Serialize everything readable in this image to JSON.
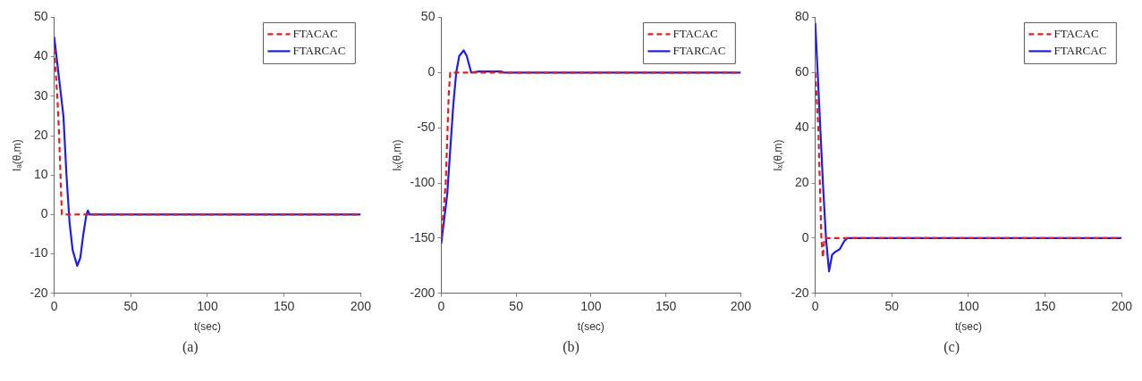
{
  "chart_data": [
    {
      "type": "line",
      "xlabel": "t(sec)",
      "ylabel": "Iₐ(θ,m)",
      "annotations": [
        "(a)"
      ],
      "xlim": [
        0,
        200
      ],
      "ylim": [
        -20,
        50
      ],
      "xticks": [
        0,
        50,
        100,
        150,
        200
      ],
      "yticks": [
        -20,
        -10,
        0,
        10,
        20,
        30,
        40,
        50
      ],
      "grid": false,
      "legend": "top right",
      "marker": "none",
      "series": [
        {
          "name": "FTACAC",
          "color": "#e02020",
          "line_style": "dashed",
          "x": [
            0,
            2,
            3,
            5,
            6,
            200
          ],
          "values": [
            42,
            30,
            22,
            0,
            0,
            0
          ]
        },
        {
          "name": "FTARCAC",
          "color": "#1f1fe0",
          "line_style": "solid",
          "x": [
            0,
            3,
            6,
            8,
            10,
            12,
            15,
            17,
            19,
            21,
            22,
            23,
            200
          ],
          "values": [
            45,
            35,
            25,
            10,
            -2,
            -9,
            -13,
            -11,
            -5,
            0,
            1,
            0,
            0
          ]
        }
      ]
    },
    {
      "type": "line",
      "xlabel": "t(sec)",
      "ylabel": "Iₓ(θ,m)",
      "annotations": [
        "(b)"
      ],
      "xlim": [
        0,
        200
      ],
      "ylim": [
        -200,
        50
      ],
      "xticks": [
        0,
        50,
        100,
        150,
        200
      ],
      "yticks": [
        -200,
        -150,
        -100,
        -50,
        0,
        50
      ],
      "grid": false,
      "legend": "top right",
      "marker": "none",
      "series": [
        {
          "name": "FTACAC",
          "color": "#e02020",
          "line_style": "dashed",
          "x": [
            0,
            3,
            5,
            6,
            200
          ],
          "values": [
            -150,
            -100,
            -20,
            0,
            0
          ]
        },
        {
          "name": "FTARCAC",
          "color": "#1f1fe0",
          "line_style": "solid",
          "x": [
            0,
            4,
            8,
            10,
            12,
            15,
            17,
            20,
            25,
            40,
            42,
            200
          ],
          "values": [
            -155,
            -110,
            -30,
            0,
            15,
            20,
            15,
            0,
            1,
            1,
            0,
            0
          ]
        }
      ]
    },
    {
      "type": "line",
      "xlabel": "t(sec)",
      "ylabel": "Iₓ(θ,m)",
      "annotations": [
        "(c)"
      ],
      "xlim": [
        0,
        200
      ],
      "ylim": [
        -20,
        80
      ],
      "xticks": [
        0,
        50,
        100,
        150,
        200
      ],
      "yticks": [
        -20,
        0,
        20,
        40,
        60,
        80
      ],
      "grid": false,
      "legend": "top right",
      "marker": "none",
      "series": [
        {
          "name": "FTACAC",
          "color": "#e02020",
          "line_style": "dashed",
          "x": [
            0,
            2,
            4,
            5,
            6,
            200
          ],
          "values": [
            60,
            40,
            0,
            -7,
            0,
            0
          ]
        },
        {
          "name": "FTARCAC",
          "color": "#1f1fe0",
          "line_style": "solid",
          "x": [
            0,
            2,
            5,
            7,
            9,
            11,
            13,
            16,
            19,
            21,
            200
          ],
          "values": [
            78,
            55,
            20,
            0,
            -12,
            -6,
            -5,
            -4,
            -1,
            0,
            0
          ]
        }
      ]
    }
  ]
}
